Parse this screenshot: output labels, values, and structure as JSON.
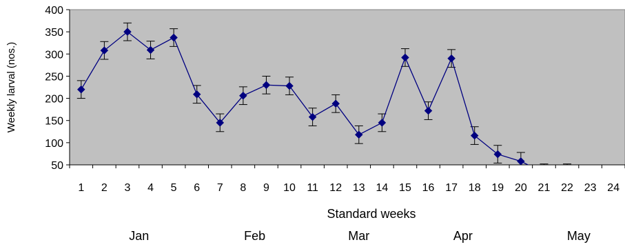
{
  "chart_data": {
    "type": "line",
    "title": "",
    "xlabel": "Standard weeks",
    "ylabel": "Weekly larval (nos.)",
    "ylim": [
      50,
      400
    ],
    "yticks": [
      50,
      100,
      150,
      200,
      250,
      300,
      350,
      400
    ],
    "categories": [
      "1",
      "2",
      "3",
      "4",
      "5",
      "6",
      "7",
      "8",
      "9",
      "10",
      "11",
      "12",
      "13",
      "14",
      "15",
      "16",
      "17",
      "18",
      "19",
      "20",
      "21",
      "22",
      "23",
      "24"
    ],
    "series": [
      {
        "values": [
          220,
          308,
          350,
          309,
          337,
          209,
          145,
          206,
          230,
          228,
          158,
          188,
          118,
          145,
          292,
          172,
          290,
          116,
          74,
          58,
          32,
          32,
          30,
          28
        ],
        "error": [
          20,
          20,
          20,
          20,
          20,
          20,
          20,
          20,
          20,
          20,
          20,
          20,
          20,
          20,
          20,
          20,
          20,
          20,
          20,
          20,
          20,
          20,
          20,
          20
        ]
      }
    ],
    "month_labels": [
      {
        "label": "Jan",
        "at_week": 3.5
      },
      {
        "label": "Feb",
        "at_week": 8.5
      },
      {
        "label": "Mar",
        "at_week": 13
      },
      {
        "label": "Apr",
        "at_week": 17.5
      },
      {
        "label": "May",
        "at_week": 22.5
      }
    ],
    "plot_background": "#c0c0c0",
    "line_color": "#000080",
    "grid": false,
    "legend": "none"
  }
}
